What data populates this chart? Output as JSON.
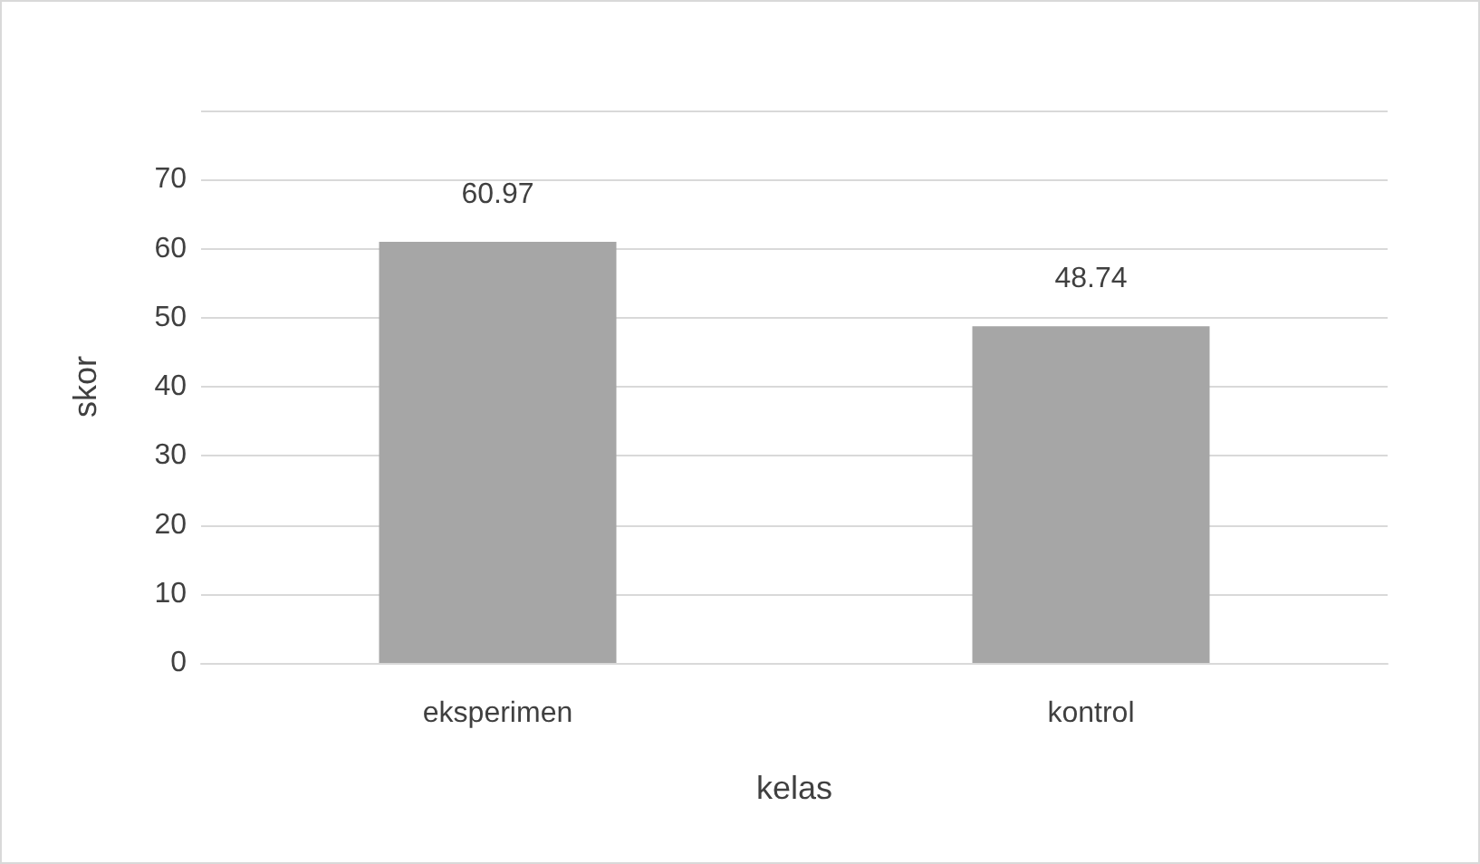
{
  "chart_data": {
    "type": "bar",
    "xlabel": "kelas",
    "ylabel": "skor",
    "categories": [
      "eksperimen",
      "kontrol"
    ],
    "values": [
      60.97,
      48.74
    ],
    "color": "#a6a6a6",
    "ylim": [
      0,
      80
    ],
    "yticks": [
      0,
      10,
      20,
      30,
      40,
      50,
      60,
      70,
      {
        "value": 80,
        "label": null
      }
    ],
    "grid": "y",
    "data_labels": true
  }
}
